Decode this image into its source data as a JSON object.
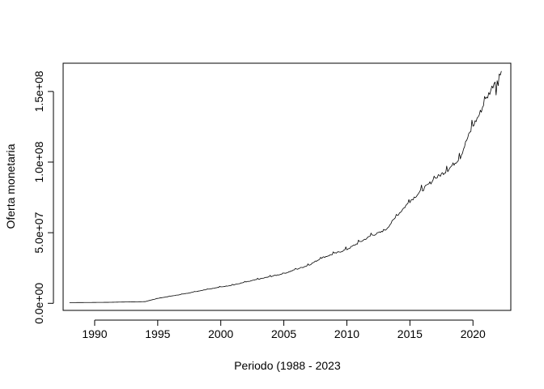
{
  "chart_data": {
    "type": "line",
    "title": "",
    "xlabel": "Periodo (1988 - 2023",
    "ylabel": "Oferta monetaria",
    "xlim": [
      1987.5,
      2023.0
    ],
    "ylim": [
      -5000000,
      170000000
    ],
    "x_ticks": [
      1990,
      1995,
      2000,
      2005,
      2010,
      2015,
      2020
    ],
    "x_tick_labels": [
      "1990",
      "1995",
      "2000",
      "2005",
      "2010",
      "2015",
      "2020"
    ],
    "y_ticks": [
      0,
      50000000,
      100000000,
      150000000
    ],
    "y_tick_labels": [
      "0.0e+00",
      "5.0e+07",
      "1.0e+08",
      "1.5e+08"
    ],
    "grid": false,
    "legend": "none",
    "series": [
      {
        "x": [
          1988.0,
          1991.0,
          1994.0,
          1995.0,
          1997.0,
          1999.0,
          2001.0,
          2003.0,
          2005.0,
          2007.0,
          2008.0,
          2010.0,
          2011.0,
          2012.0,
          2013.0,
          2014.0,
          2015.0,
          2016.0,
          2017.0,
          2018.0,
          2019.0,
          2019.5,
          2020.0,
          2020.5,
          2021.0,
          2021.5,
          2022.0,
          2022.3
        ],
        "values": [
          500000,
          700000,
          1200000,
          3500000,
          6500000,
          10000000,
          13000000,
          17000000,
          21000000,
          27000000,
          32000000,
          38000000,
          43000000,
          48000000,
          51000000,
          62000000,
          72000000,
          80000000,
          88000000,
          94000000,
          103000000,
          115000000,
          125000000,
          133000000,
          143000000,
          152000000,
          162000000,
          164000000
        ]
      }
    ]
  }
}
